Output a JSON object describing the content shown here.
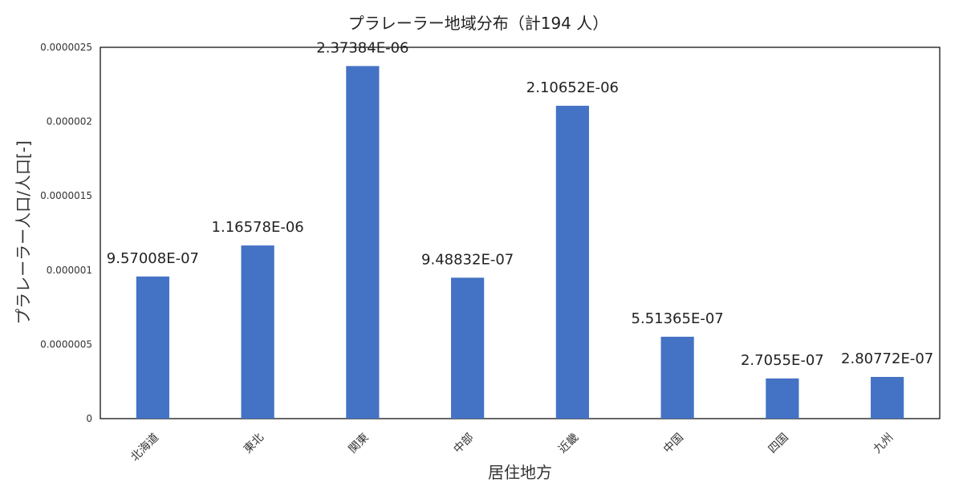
{
  "chart_data": {
    "type": "bar",
    "title": "プラレーラー地域分布（計194 人）",
    "xlabel": "居住地方",
    "ylabel": "プラレーラー人口/人口[-]",
    "categories": [
      "北海道",
      "東北",
      "関東",
      "中部",
      "近畿",
      "中国",
      "四国",
      "九州"
    ],
    "values": [
      9.57008e-07,
      1.16578e-06,
      2.37384e-06,
      9.48832e-07,
      2.10652e-06,
      5.51365e-07,
      2.7055e-07,
      2.80772e-07
    ],
    "data_labels": [
      "9.57008E-07",
      "1.16578E-06",
      "2.37384E-06",
      "9.48832E-07",
      "2.10652E-06",
      "5.51365E-07",
      "2.7055E-07",
      "2.80772E-07"
    ],
    "yticks": [
      0,
      5e-07,
      1e-06,
      1.5e-06,
      2e-06,
      2.5e-06
    ],
    "ytick_labels": [
      "0",
      "0.0000005",
      "0.000001",
      "0.0000015",
      "0.000002",
      "0.0000025"
    ],
    "ylim": [
      0,
      2.5e-06
    ],
    "grid": false,
    "bar_color": "#4472C4"
  }
}
